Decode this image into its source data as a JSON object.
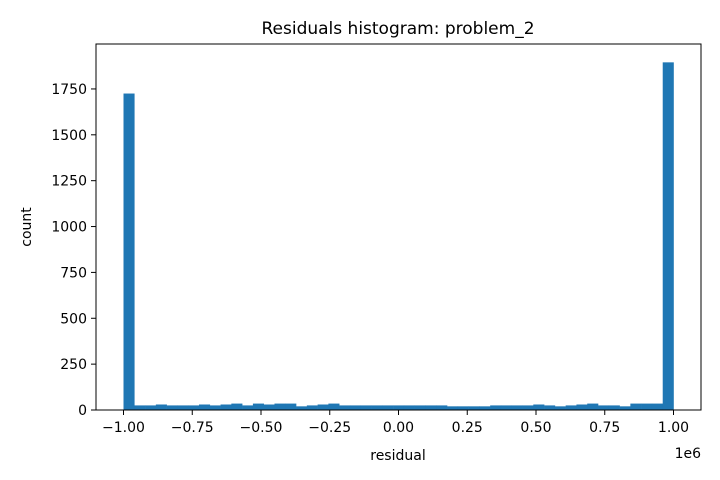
{
  "chart_data": {
    "type": "bar",
    "title": "Residuals histogram: problem_2",
    "xlabel": "residual",
    "ylabel": "count",
    "x_offset_label": "1e6",
    "xlim": [
      -1.1,
      1.1
    ],
    "ylim": [
      0,
      1995
    ],
    "xticks": [
      -1.0,
      -0.75,
      -0.5,
      -0.25,
      0.0,
      0.25,
      0.5,
      0.75,
      1.0
    ],
    "xtick_labels": [
      "−1.00",
      "−0.75",
      "−0.50",
      "−0.25",
      "0.00",
      "0.25",
      "0.50",
      "0.75",
      "1.00"
    ],
    "yticks": [
      0,
      250,
      500,
      750,
      1000,
      1250,
      1500,
      1750
    ],
    "ytick_labels": [
      "0",
      "250",
      "500",
      "750",
      "1000",
      "1250",
      "1500",
      "1750"
    ],
    "bin_range": [
      -1.0,
      1.0
    ],
    "counts": [
      1725,
      25,
      25,
      30,
      25,
      25,
      25,
      30,
      25,
      30,
      35,
      25,
      35,
      30,
      35,
      35,
      20,
      25,
      30,
      35,
      25,
      25,
      25,
      25,
      25,
      25,
      25,
      25,
      25,
      25,
      20,
      20,
      20,
      20,
      25,
      25,
      25,
      25,
      30,
      25,
      20,
      25,
      30,
      35,
      25,
      25,
      20,
      35,
      35,
      35,
      1895
    ],
    "bar_color": "#1f77b4",
    "grid": false
  }
}
